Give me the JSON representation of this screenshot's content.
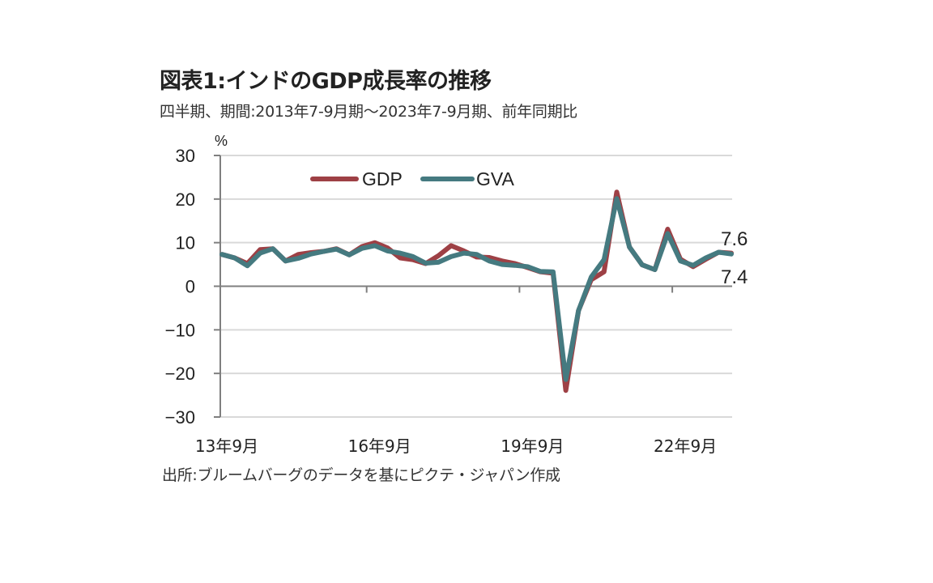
{
  "title": "図表1:インドのGDP成長率の推移",
  "subtitle": "四半期、期間:2013年7-9月期～2023年7-9月期、前年同期比",
  "source": "出所:ブルームバーグのデータを基にピクテ・ジャパン作成",
  "chart_data": {
    "type": "line",
    "title": "図表1:インドのGDP成長率の推移",
    "ylabel": "%",
    "xlabel": "",
    "ylim": [
      -30,
      30
    ],
    "yticks": [
      30,
      20,
      10,
      0,
      -10,
      -20,
      -30
    ],
    "ytick_labels": [
      "30",
      "20",
      "10",
      "0",
      "−10",
      "−20",
      "−30"
    ],
    "grid": true,
    "legend_position": "top-left",
    "x": [
      "13Q3",
      "13Q4",
      "14Q1",
      "14Q2",
      "14Q3",
      "14Q4",
      "15Q1",
      "15Q2",
      "15Q3",
      "15Q4",
      "16Q1",
      "16Q2",
      "16Q3",
      "16Q4",
      "17Q1",
      "17Q2",
      "17Q3",
      "17Q4",
      "18Q1",
      "18Q2",
      "18Q3",
      "18Q4",
      "19Q1",
      "19Q2",
      "19Q3",
      "19Q4",
      "20Q1",
      "20Q2",
      "20Q3",
      "20Q4",
      "21Q1",
      "21Q2",
      "21Q3",
      "21Q4",
      "22Q1",
      "22Q2",
      "22Q3",
      "22Q4",
      "23Q1",
      "23Q2",
      "23Q3"
    ],
    "xtick_labels": [
      "13年9月",
      "16年9月",
      "19年9月",
      "22年9月"
    ],
    "xtick_indices": [
      0,
      12,
      24,
      36
    ],
    "series": [
      {
        "name": "GDP",
        "color": "#9e4045",
        "values": [
          7.3,
          6.5,
          5.2,
          8.4,
          8.6,
          5.8,
          7.3,
          7.7,
          8.0,
          8.6,
          7.2,
          9.1,
          10.0,
          8.8,
          6.5,
          6.1,
          5.2,
          7.0,
          9.3,
          8.1,
          6.7,
          6.6,
          5.8,
          5.2,
          4.3,
          3.3,
          3.0,
          -23.9,
          -5.6,
          1.5,
          3.3,
          21.6,
          9.0,
          4.9,
          3.8,
          13.1,
          6.2,
          4.5,
          6.2,
          7.8,
          7.6
        ],
        "end_label": "7.6"
      },
      {
        "name": "GVA",
        "color": "#457a80",
        "values": [
          7.3,
          6.5,
          4.7,
          7.6,
          8.6,
          5.8,
          6.4,
          7.4,
          8.0,
          8.5,
          7.2,
          8.7,
          9.3,
          8.1,
          7.6,
          6.8,
          5.3,
          5.5,
          6.8,
          7.6,
          7.3,
          5.8,
          5.0,
          4.8,
          4.5,
          3.4,
          3.3,
          -21.4,
          -5.6,
          2.1,
          6.1,
          20.1,
          9.0,
          4.9,
          3.8,
          12.1,
          5.8,
          4.8,
          6.5,
          7.8,
          7.4
        ],
        "end_label": "7.4"
      }
    ]
  }
}
